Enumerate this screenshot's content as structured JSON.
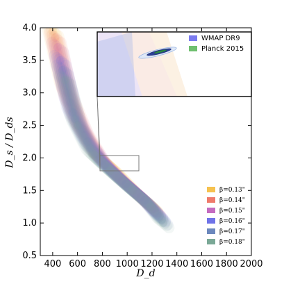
{
  "chart_data": {
    "type": "scatter",
    "title": "",
    "xlabel": "D_d",
    "ylabel": "D_s / D_ds",
    "xlim": [
      300,
      2000
    ],
    "ylim": [
      0.5,
      4.0
    ],
    "x_ticks": [
      "400",
      "600",
      "800",
      "1000",
      "1200",
      "1400",
      "1600",
      "1800",
      "2000"
    ],
    "y_ticks": [
      "0.5",
      "1.0",
      "1.5",
      "2.0",
      "2.5",
      "3.0",
      "3.5",
      "4.0"
    ],
    "series": [
      {
        "name": "β=0.13\"",
        "color": "#f6c24f",
        "values": [
          [
            400,
            3.95
          ],
          [
            500,
            3.1
          ],
          [
            600,
            2.55
          ],
          [
            750,
            2.05
          ],
          [
            900,
            1.8
          ],
          [
            1050,
            1.5
          ],
          [
            1200,
            1.25
          ]
        ]
      },
      {
        "name": "β=0.14\"",
        "color": "#ef7a6b",
        "values": [
          [
            420,
            3.85
          ],
          [
            520,
            3.0
          ],
          [
            640,
            2.45
          ],
          [
            780,
            2.0
          ],
          [
            930,
            1.7
          ],
          [
            1080,
            1.45
          ],
          [
            1220,
            1.2
          ]
        ]
      },
      {
        "name": "β=0.15\"",
        "color": "#c46bc0",
        "values": [
          [
            440,
            3.7
          ],
          [
            540,
            2.85
          ],
          [
            660,
            2.35
          ],
          [
            800,
            1.95
          ],
          [
            960,
            1.65
          ],
          [
            1110,
            1.4
          ],
          [
            1240,
            1.15
          ]
        ]
      },
      {
        "name": "β=0.16\"",
        "color": "#6f73e8",
        "values": [
          [
            460,
            3.5
          ],
          [
            560,
            2.7
          ],
          [
            680,
            2.25
          ],
          [
            820,
            1.9
          ],
          [
            990,
            1.6
          ],
          [
            1140,
            1.35
          ],
          [
            1260,
            1.1
          ]
        ]
      },
      {
        "name": "β=0.17\"",
        "color": "#6c88bd",
        "values": [
          [
            480,
            3.35
          ],
          [
            580,
            2.6
          ],
          [
            700,
            2.15
          ],
          [
            840,
            1.85
          ],
          [
            1010,
            1.55
          ],
          [
            1170,
            1.3
          ],
          [
            1280,
            1.05
          ]
        ]
      },
      {
        "name": "β=0.18\"",
        "color": "#7aa896",
        "values": [
          [
            500,
            3.2
          ],
          [
            600,
            2.5
          ],
          [
            720,
            2.05
          ],
          [
            860,
            1.8
          ],
          [
            1040,
            1.5
          ],
          [
            1190,
            1.25
          ],
          [
            1290,
            1.0
          ]
        ]
      }
    ],
    "inset": {
      "x_range": [
        800,
        1100
      ],
      "y_range": [
        1.8,
        2.05
      ],
      "legend": [
        {
          "name": "WMAP DR9",
          "color": "#7b7bf0"
        },
        {
          "name": "Planck 2015",
          "color": "#6fbf6f"
        }
      ]
    },
    "legend_position": "bottom-right",
    "grid": false
  }
}
